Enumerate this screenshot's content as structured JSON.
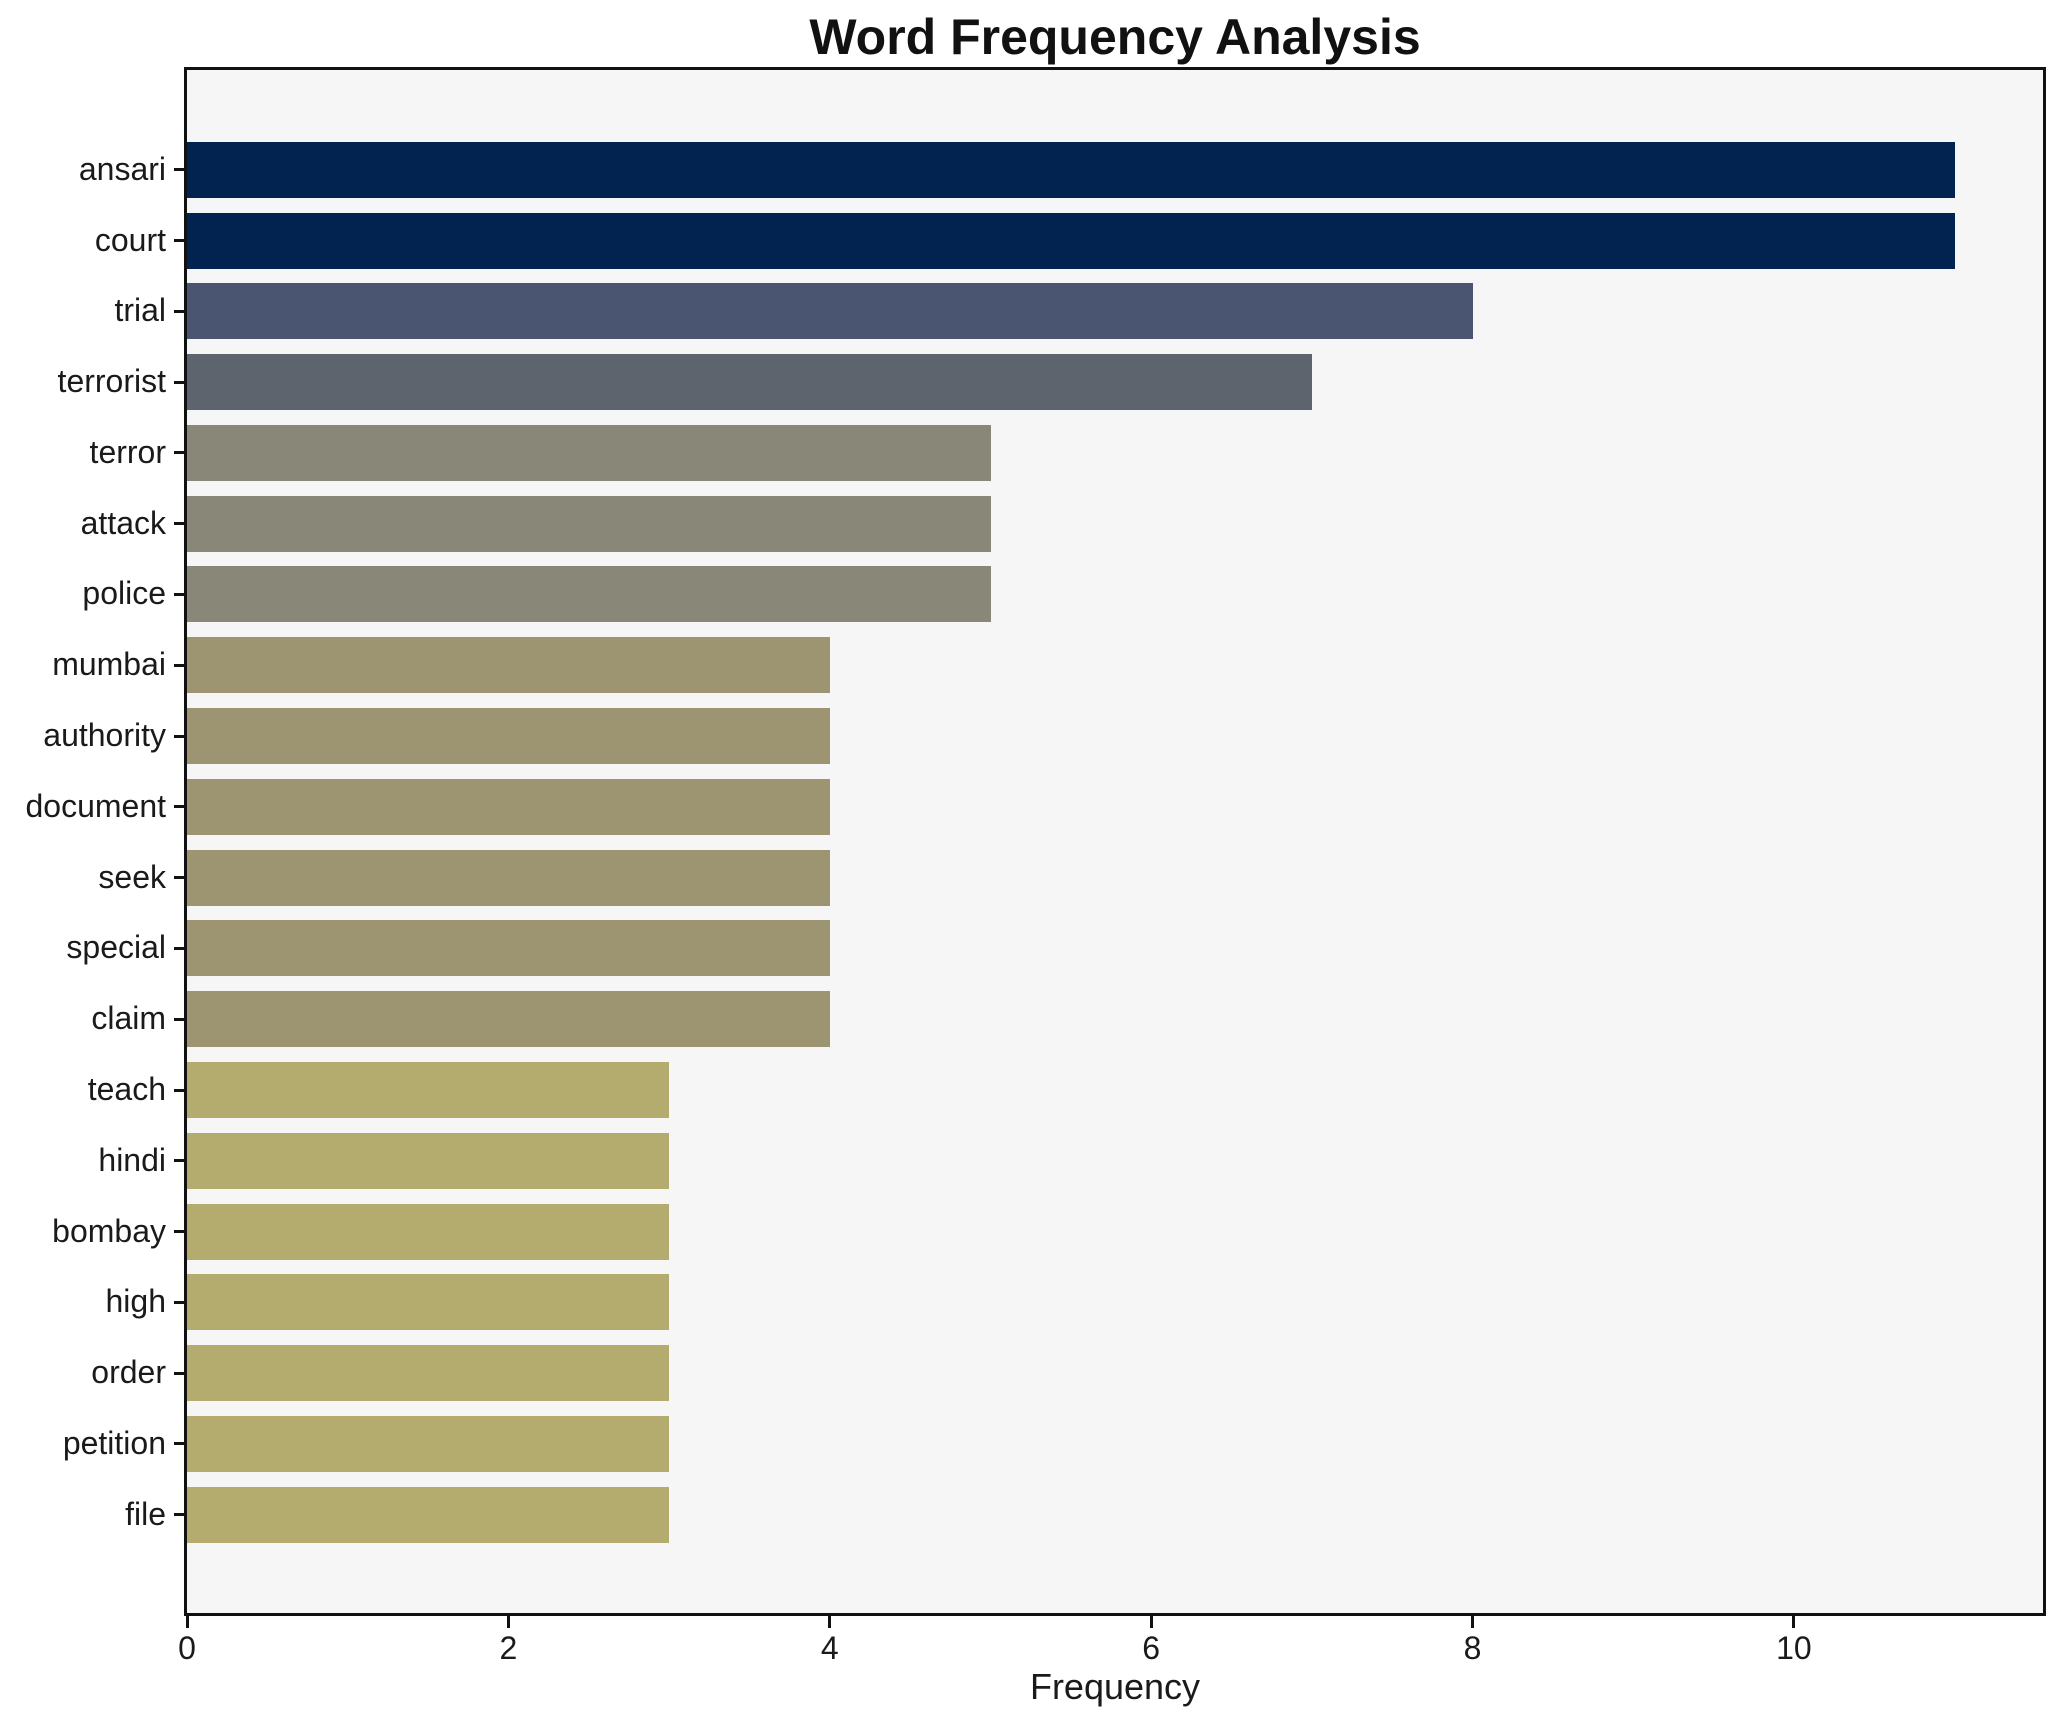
{
  "title": "Word Frequency Analysis",
  "chart_data": {
    "type": "bar",
    "orientation": "horizontal",
    "title": "Word Frequency Analysis",
    "xlabel": "Frequency",
    "ylabel": "",
    "categories": [
      "ansari",
      "court",
      "trial",
      "terrorist",
      "terror",
      "attack",
      "police",
      "mumbai",
      "authority",
      "document",
      "seek",
      "special",
      "claim",
      "teach",
      "hindi",
      "bombay",
      "high",
      "order",
      "petition",
      "file"
    ],
    "values": [
      11,
      11,
      8,
      7,
      5,
      5,
      5,
      4,
      4,
      4,
      4,
      4,
      4,
      3,
      3,
      3,
      3,
      3,
      3,
      3
    ],
    "bar_colors": [
      "#02234f",
      "#02234f",
      "#4a5571",
      "#5d646e",
      "#888778",
      "#888778",
      "#888778",
      "#9d9571",
      "#9d9571",
      "#9d9571",
      "#9d9571",
      "#9d9571",
      "#9d9571",
      "#b4ab6e",
      "#b4ab6e",
      "#b4ab6e",
      "#b4ab6e",
      "#b4ab6e",
      "#b4ab6e",
      "#b4ab6e"
    ],
    "xticks": [
      0,
      2,
      4,
      6,
      8,
      10
    ],
    "xlim": [
      0,
      11.55
    ],
    "grid": false,
    "legend": null,
    "colors": {
      "plot_background": "#f6f6f7",
      "figure_background": "#ffffff",
      "frame": "#111111",
      "text": "#1a1a1a"
    }
  }
}
